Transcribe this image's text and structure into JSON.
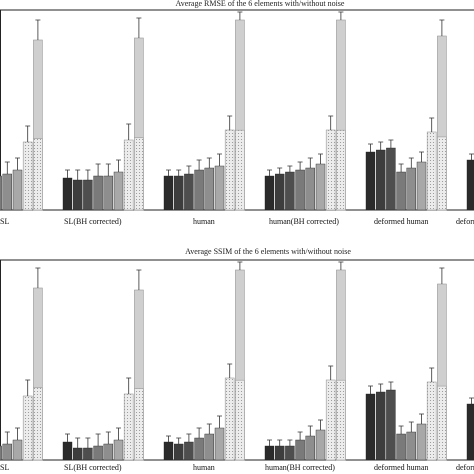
{
  "chart_data": [
    {
      "type": "bar",
      "title": "Average RMSE of the 6 elements with/without noise",
      "categories": [
        "SL",
        "SL(BH corrected)",
        "human",
        "human(BH corrected)",
        "deformed human",
        "deformed human(BH corrected)"
      ],
      "category_labels_visible": [
        "SL",
        "SL(BH corrected)",
        "human",
        "human(BH corrected)",
        "deformed human",
        "deform"
      ],
      "ylim": [
        0,
        1
      ],
      "series": [
        {
          "values": [
            0.18,
            0.16,
            0.17,
            0.17,
            0.29,
            0.25
          ],
          "errors": [
            0.04,
            0.04,
            0.03,
            0.03,
            0.04,
            0.03
          ]
        },
        {
          "values": [
            0.17,
            0.15,
            0.17,
            0.18,
            0.3,
            null
          ],
          "errors": [
            0.05,
            0.05,
            0.03,
            0.03,
            0.04,
            null
          ]
        },
        {
          "values": [
            0.17,
            0.15,
            0.18,
            0.19,
            0.31,
            null
          ],
          "errors": [
            0.05,
            0.05,
            0.04,
            0.03,
            0.04,
            null
          ]
        },
        {
          "values": [
            0.17,
            0.17,
            0.2,
            0.2,
            0.19,
            null
          ],
          "errors": [
            0.05,
            0.06,
            0.05,
            0.04,
            0.04,
            null
          ]
        },
        {
          "values": [
            0.18,
            0.17,
            0.21,
            0.21,
            0.21,
            null
          ],
          "errors": [
            0.06,
            0.06,
            0.05,
            0.05,
            0.05,
            null
          ]
        },
        {
          "values": [
            0.2,
            0.19,
            0.22,
            0.23,
            0.24,
            null
          ],
          "errors": [
            0.06,
            0.06,
            0.06,
            0.05,
            0.05,
            null
          ]
        },
        {
          "values": [
            0.34,
            0.35,
            0.4,
            0.4,
            0.39,
            null
          ],
          "errors": [
            0.08,
            0.08,
            0.07,
            0.07,
            0.07,
            null
          ]
        },
        {
          "values": [
            0.85,
            0.86,
            0.95,
            0.95,
            0.87,
            null
          ],
          "errors": [
            0.1,
            0.1,
            0.09,
            0.09,
            0.08,
            null
          ]
        }
      ]
    },
    {
      "type": "bar",
      "title": "Average SSIM of the 6 elements with/without noise",
      "categories": [
        "SL",
        "SL(BH corrected)",
        "human",
        "human(BH corrected)",
        "deformed human",
        "deformed human(BH corrected)"
      ],
      "category_labels_visible": [
        "SL",
        "SL(BH corrected)",
        "human",
        "human(BH corrected)",
        "deformed human",
        "deform"
      ],
      "ylim": [
        0,
        1
      ],
      "series": [
        {
          "values": [
            0.08,
            0.09,
            0.09,
            0.07,
            0.33,
            0.28
          ],
          "errors": [
            0.04,
            0.04,
            0.03,
            0.03,
            0.04,
            0.03
          ]
        },
        {
          "values": [
            0.07,
            0.06,
            0.08,
            0.07,
            0.34,
            null
          ],
          "errors": [
            0.05,
            0.05,
            0.03,
            0.03,
            0.04,
            null
          ]
        },
        {
          "values": [
            0.06,
            0.06,
            0.09,
            0.07,
            0.35,
            null
          ],
          "errors": [
            0.05,
            0.05,
            0.04,
            0.03,
            0.04,
            null
          ]
        },
        {
          "values": [
            0.07,
            0.07,
            0.11,
            0.1,
            0.13,
            null
          ],
          "errors": [
            0.05,
            0.06,
            0.05,
            0.04,
            0.04,
            null
          ]
        },
        {
          "values": [
            0.08,
            0.08,
            0.13,
            0.12,
            0.14,
            null
          ],
          "errors": [
            0.06,
            0.06,
            0.05,
            0.05,
            0.05,
            null
          ]
        },
        {
          "values": [
            0.1,
            0.1,
            0.16,
            0.15,
            0.18,
            null
          ],
          "errors": [
            0.06,
            0.06,
            0.06,
            0.05,
            0.05,
            null
          ]
        },
        {
          "values": [
            0.32,
            0.33,
            0.41,
            0.4,
            0.39,
            null
          ],
          "errors": [
            0.08,
            0.08,
            0.07,
            0.07,
            0.07,
            null
          ]
        },
        {
          "values": [
            0.86,
            0.85,
            0.95,
            0.95,
            0.88,
            null
          ],
          "errors": [
            0.1,
            0.1,
            0.09,
            0.09,
            0.08,
            null
          ]
        }
      ]
    }
  ],
  "colors": [
    "#2b2b2b",
    "#3d3d3d",
    "#4e4e4e",
    "#7a7a7a",
    "#8e8e8e",
    "#a8a8a8",
    "#e2e2e2",
    "#cfcfcf"
  ]
}
